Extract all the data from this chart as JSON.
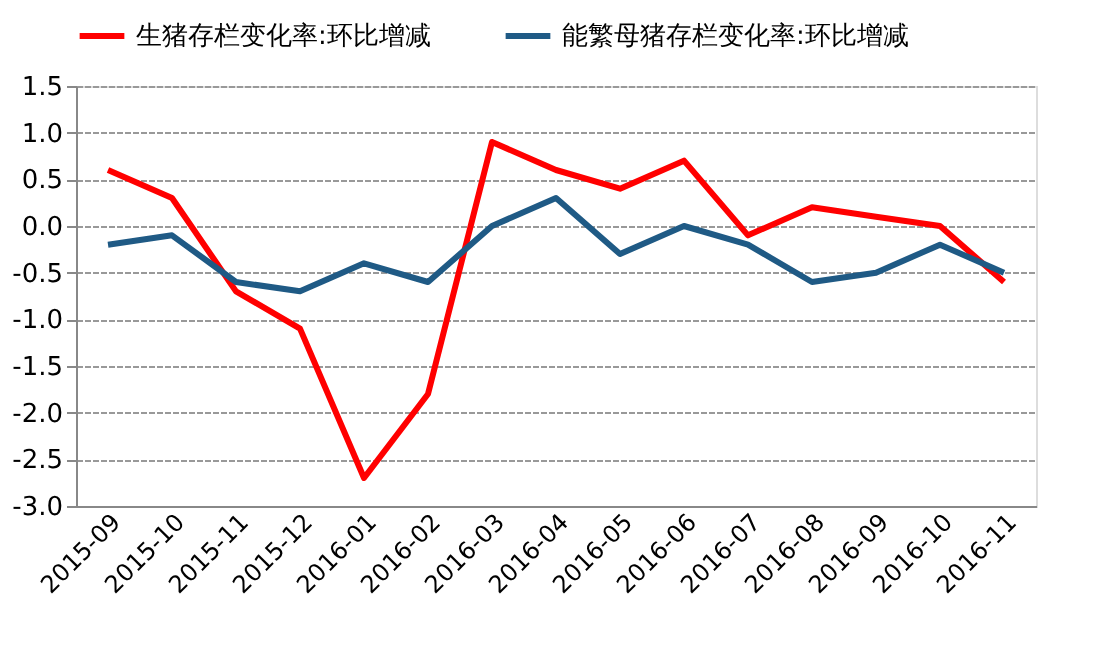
{
  "chart_data": {
    "type": "line",
    "categories": [
      "2015-09",
      "2015-10",
      "2015-11",
      "2015-12",
      "2016-01",
      "2016-02",
      "2016-03",
      "2016-04",
      "2016-05",
      "2016-06",
      "2016-07",
      "2016-08",
      "2016-09",
      "2016-10",
      "2016-11"
    ],
    "series": [
      {
        "name": "生猪存栏变化率:环比增减",
        "color": "#ff0000",
        "values": [
          0.6,
          0.3,
          -0.7,
          -1.1,
          -2.7,
          -1.8,
          0.9,
          0.6,
          0.4,
          0.7,
          -0.1,
          0.2,
          0.1,
          0.0,
          -0.6
        ]
      },
      {
        "name": "能繁母猪存栏变化率:环比增减",
        "color": "#1f5a85",
        "values": [
          -0.2,
          -0.1,
          -0.6,
          -0.7,
          -0.4,
          -0.6,
          0.0,
          0.3,
          -0.3,
          0.0,
          -0.2,
          -0.6,
          -0.5,
          -0.2,
          -0.5
        ]
      }
    ],
    "ylim": [
      -3.0,
      1.5
    ],
    "yticks": [
      {
        "value": -3,
        "label": "-3.0"
      },
      -2.5,
      {
        "value": -2,
        "label": "-2.0"
      },
      -1.5,
      {
        "value": -1,
        "label": "-1.0"
      },
      -0.5,
      {
        "value": 0,
        "label": "0.0"
      },
      0.5,
      {
        "value": 1,
        "label": "1.0"
      },
      1.5
    ],
    "grid": "y",
    "legend": "top",
    "marker": "none",
    "line_style": "solid"
  }
}
